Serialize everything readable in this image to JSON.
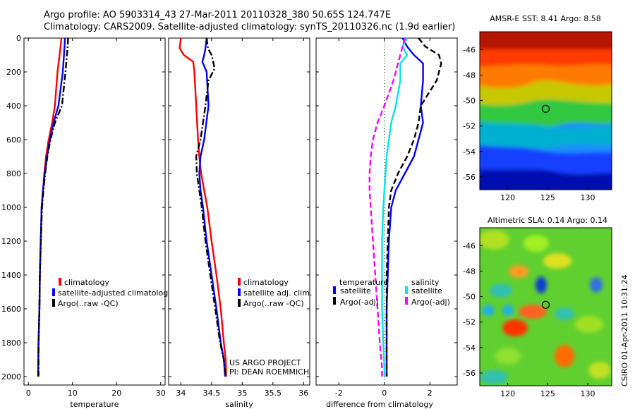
{
  "header": {
    "line1": "Argo profile: AO 5903314_43 27-Mar-2011 20110328_380 50.65S 124.747E",
    "line2": "Climatology: CARS2009. Satellite-adjusted climatology: synTS_20110326.nc (1.9d earlier)"
  },
  "credits": {
    "project": "US ARGO PROJECT",
    "pi": "PI: DEAN ROEMMICH",
    "stamp": "CSIRO 01-Apr-2011 10:31:24"
  },
  "colors": {
    "climatology": "#ff0000",
    "satellite": "#0000ff",
    "argo": "#000000",
    "sal_satellite": "#00e5e5",
    "sal_argo": "#ff00ff"
  },
  "chart_data": [
    {
      "id": "temperature",
      "type": "line",
      "xlabel": "temperature",
      "xlim": [
        -1,
        31
      ],
      "ylim": [
        2050,
        0
      ],
      "xticks": [
        "0",
        "10",
        "20",
        "30"
      ],
      "yticks": [
        "0",
        "200",
        "400",
        "600",
        "800",
        "1000",
        "1200",
        "1400",
        "1600",
        "1800",
        "2000"
      ],
      "legend": [
        "climatology",
        "satellite-adjusted climatolog",
        "Argo(..raw -QC)"
      ],
      "series": [
        {
          "name": "climatology",
          "color": "#ff0000",
          "dash": "solid",
          "x": [
            7.5,
            7.3,
            6.6,
            6.0,
            5.4,
            4.6,
            4.0,
            3.6,
            3.3,
            3.0,
            2.8,
            2.6,
            2.5,
            2.3,
            2.2
          ],
          "y": [
            0,
            50,
            200,
            400,
            500,
            600,
            700,
            800,
            900,
            1000,
            1200,
            1400,
            1600,
            1800,
            2000
          ]
        },
        {
          "name": "satellite-adjusted climatolog",
          "color": "#0000ff",
          "dash": "solid",
          "x": [
            8.3,
            8.2,
            7.8,
            6.8,
            5.7,
            4.9,
            4.2,
            3.7,
            3.3,
            3.0,
            2.8,
            2.6,
            2.5,
            2.3,
            2.2
          ],
          "y": [
            0,
            50,
            200,
            400,
            500,
            600,
            700,
            800,
            900,
            1000,
            1200,
            1400,
            1600,
            1800,
            2000
          ]
        },
        {
          "name": "Argo(..raw -QC)",
          "color": "#000000",
          "dash": "dashdot",
          "x": [
            9.0,
            8.9,
            8.4,
            7.6,
            6.0,
            5.0,
            4.3,
            3.8,
            3.4,
            3.1,
            2.8,
            2.6,
            2.5,
            2.3,
            2.3
          ],
          "y": [
            0,
            50,
            200,
            400,
            500,
            600,
            700,
            800,
            900,
            1000,
            1200,
            1400,
            1600,
            1800,
            2000
          ]
        }
      ]
    },
    {
      "id": "salinity",
      "type": "line",
      "xlabel": "salinity",
      "xlim": [
        33.8,
        36.1
      ],
      "ylim": [
        2050,
        0
      ],
      "xticks": [
        "34",
        "34.5",
        "35",
        "35.5",
        "36"
      ],
      "legend": [
        "climatology",
        "satellite adj. clim.",
        "Argo(..raw -QC)"
      ],
      "series": [
        {
          "name": "climatology",
          "color": "#ff0000",
          "dash": "solid",
          "x": [
            34.0,
            33.98,
            34.05,
            34.2,
            34.22,
            34.25,
            34.28,
            34.3,
            34.33,
            34.38,
            34.43,
            34.5,
            34.58,
            34.65,
            34.7,
            34.73,
            34.74,
            34.74
          ],
          "y": [
            0,
            60,
            100,
            140,
            200,
            400,
            600,
            700,
            800,
            900,
            1000,
            1200,
            1400,
            1600,
            1800,
            1900,
            2000,
            2000
          ]
        },
        {
          "name": "satellite adj. clim.",
          "color": "#0000ff",
          "dash": "solid",
          "x": [
            34.42,
            34.4,
            34.38,
            34.35,
            34.42,
            34.45,
            34.38,
            34.32,
            34.3,
            34.32,
            34.36,
            34.42,
            34.5,
            34.58,
            34.65,
            34.7,
            34.72,
            34.72
          ],
          "y": [
            0,
            60,
            100,
            140,
            200,
            400,
            600,
            700,
            800,
            900,
            1000,
            1200,
            1400,
            1600,
            1800,
            1900,
            2000,
            2000
          ]
        },
        {
          "name": "Argo(..raw -QC)",
          "color": "#000000",
          "dash": "dashdot",
          "x": [
            34.42,
            34.44,
            34.5,
            34.55,
            34.45,
            34.4,
            34.32,
            34.25,
            34.26,
            34.3,
            34.34,
            34.4,
            34.48,
            34.56,
            34.64,
            34.7,
            34.73,
            34.73
          ],
          "y": [
            0,
            60,
            100,
            180,
            250,
            400,
            600,
            700,
            800,
            900,
            1000,
            1200,
            1400,
            1600,
            1800,
            1900,
            2000,
            2000
          ]
        }
      ]
    },
    {
      "id": "difference",
      "type": "line",
      "xlabel": "difference from climatology",
      "xlim": [
        -3,
        3.2
      ],
      "ylim": [
        2050,
        0
      ],
      "xticks": [
        "-2",
        "0",
        "2"
      ],
      "legend_groups": [
        {
          "title": "temperature",
          "items": [
            "satellite",
            "Argo(-adj)"
          ]
        },
        {
          "title": "salinity",
          "items": [
            "satellite",
            "Argo(-adj)"
          ]
        }
      ],
      "series": [
        {
          "name": "temperature satellite",
          "color": "#0000ff",
          "dash": "solid",
          "x": [
            0.8,
            1.0,
            1.3,
            1.7,
            1.7,
            1.6,
            1.7,
            1.5,
            1.3,
            0.9,
            0.5,
            0.3,
            0.2,
            0.15,
            0.1,
            0.1,
            0.1,
            0.1
          ],
          "y": [
            0,
            50,
            100,
            150,
            250,
            400,
            500,
            600,
            700,
            800,
            900,
            1000,
            1200,
            1400,
            1600,
            1800,
            1950,
            2000
          ]
        },
        {
          "name": "temperature Argo(-adj)",
          "color": "#000000",
          "dash": "dashed",
          "x": [
            1.5,
            1.8,
            2.4,
            2.5,
            2.3,
            1.6,
            1.5,
            1.3,
            1.0,
            0.6,
            0.3,
            0.2,
            0.15,
            0.1,
            0.1,
            0.1,
            0.1,
            0.1
          ],
          "y": [
            0,
            50,
            100,
            150,
            250,
            400,
            500,
            600,
            700,
            800,
            900,
            1000,
            1200,
            1400,
            1600,
            1800,
            1950,
            2000
          ]
        },
        {
          "name": "salinity satellite",
          "color": "#00e5e5",
          "dash": "solid",
          "x": [
            1.0,
            0.8,
            1.0,
            0.7,
            0.7,
            0.5,
            0.3,
            0.2,
            0.1,
            0.05,
            0.0,
            -0.05,
            -0.1,
            -0.1,
            -0.1,
            -0.05,
            0.0,
            0.0
          ],
          "y": [
            0,
            50,
            100,
            150,
            250,
            400,
            500,
            600,
            700,
            800,
            900,
            1000,
            1200,
            1400,
            1600,
            1800,
            1950,
            2000
          ]
        },
        {
          "name": "salinity Argo(-adj)",
          "color": "#ff00ff",
          "dash": "dashed",
          "x": [
            0.9,
            0.8,
            0.7,
            0.6,
            0.4,
            0.0,
            -0.3,
            -0.5,
            -0.6,
            -0.65,
            -0.65,
            -0.6,
            -0.5,
            -0.4,
            -0.3,
            -0.2,
            -0.1,
            -0.1
          ],
          "y": [
            0,
            50,
            100,
            150,
            250,
            400,
            500,
            600,
            700,
            800,
            900,
            1000,
            1200,
            1400,
            1600,
            1800,
            1950,
            2000
          ]
        }
      ]
    },
    {
      "id": "sst_map",
      "type": "heatmap",
      "title": "AMSR-E SST: 8.41 Argo: 8.58",
      "xlim": [
        116.5,
        133
      ],
      "ylim": [
        -57,
        -44.6
      ],
      "xticks": [
        "120",
        "125",
        "130"
      ],
      "yticks": [
        "-46",
        "-48",
        "-50",
        "-52",
        "-54",
        "-56"
      ],
      "marker": {
        "lon": 124.747,
        "lat": -50.65
      }
    },
    {
      "id": "sla_map",
      "type": "heatmap",
      "title": "Altimetric SLA: 0.14 Argo: 0.14",
      "xlim": [
        116.5,
        133
      ],
      "ylim": [
        -57,
        -44.6
      ],
      "xticks": [
        "120",
        "125",
        "130"
      ],
      "yticks": [
        "-46",
        "-48",
        "-50",
        "-52",
        "-54",
        "-56"
      ],
      "marker": {
        "lon": 124.747,
        "lat": -50.65
      }
    }
  ]
}
